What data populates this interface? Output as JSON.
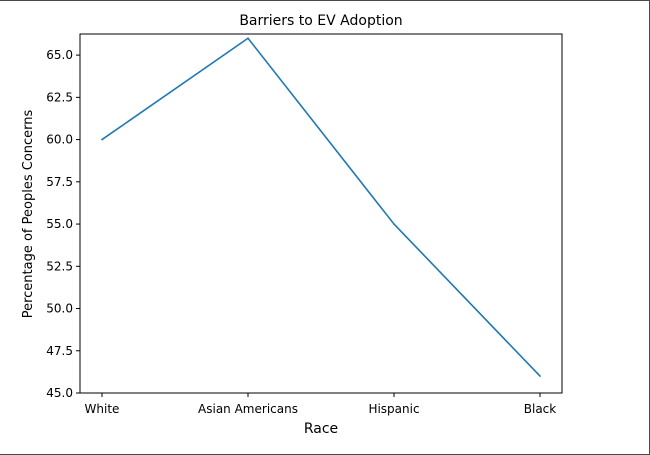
{
  "chart_data": {
    "type": "line",
    "title": "Barriers to EV Adoption",
    "xlabel": "Race",
    "ylabel": "Percentage of Peoples Concerns",
    "categories": [
      "White",
      "Asian Americans",
      "Hispanic",
      "Black"
    ],
    "series": [
      {
        "values": [
          60,
          66,
          55,
          46
        ],
        "color": "#1f77b4"
      }
    ],
    "ylim": [
      45.0,
      66.25
    ],
    "yticks": [
      "45.0",
      "47.5",
      "50.0",
      "52.5",
      "55.0",
      "57.5",
      "60.0",
      "62.5",
      "65.0"
    ],
    "grid": false,
    "legend": false
  }
}
